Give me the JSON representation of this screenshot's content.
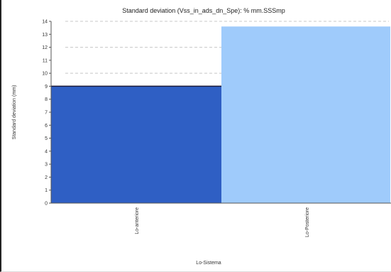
{
  "chart_data": {
    "type": "bar",
    "title": "Standard deviation (Vss_in_ads_dn_Spe): % mm.SSSmp",
    "xlabel": "Lo-Sistema",
    "ylabel": "Standard deviation (mm)",
    "categories": [
      "Lo-anteriore",
      "Lo-Posteriore"
    ],
    "values": [
      9,
      13.6
    ],
    "colors": [
      "#2f5fc4",
      "#9fcbfb"
    ],
    "ylim": [
      0,
      14
    ],
    "yticks": [
      0,
      1,
      2,
      3,
      4,
      5,
      6,
      7,
      8,
      9,
      10,
      11,
      12,
      13,
      14
    ],
    "grid": "horizontal-dashed",
    "legend": "none"
  }
}
